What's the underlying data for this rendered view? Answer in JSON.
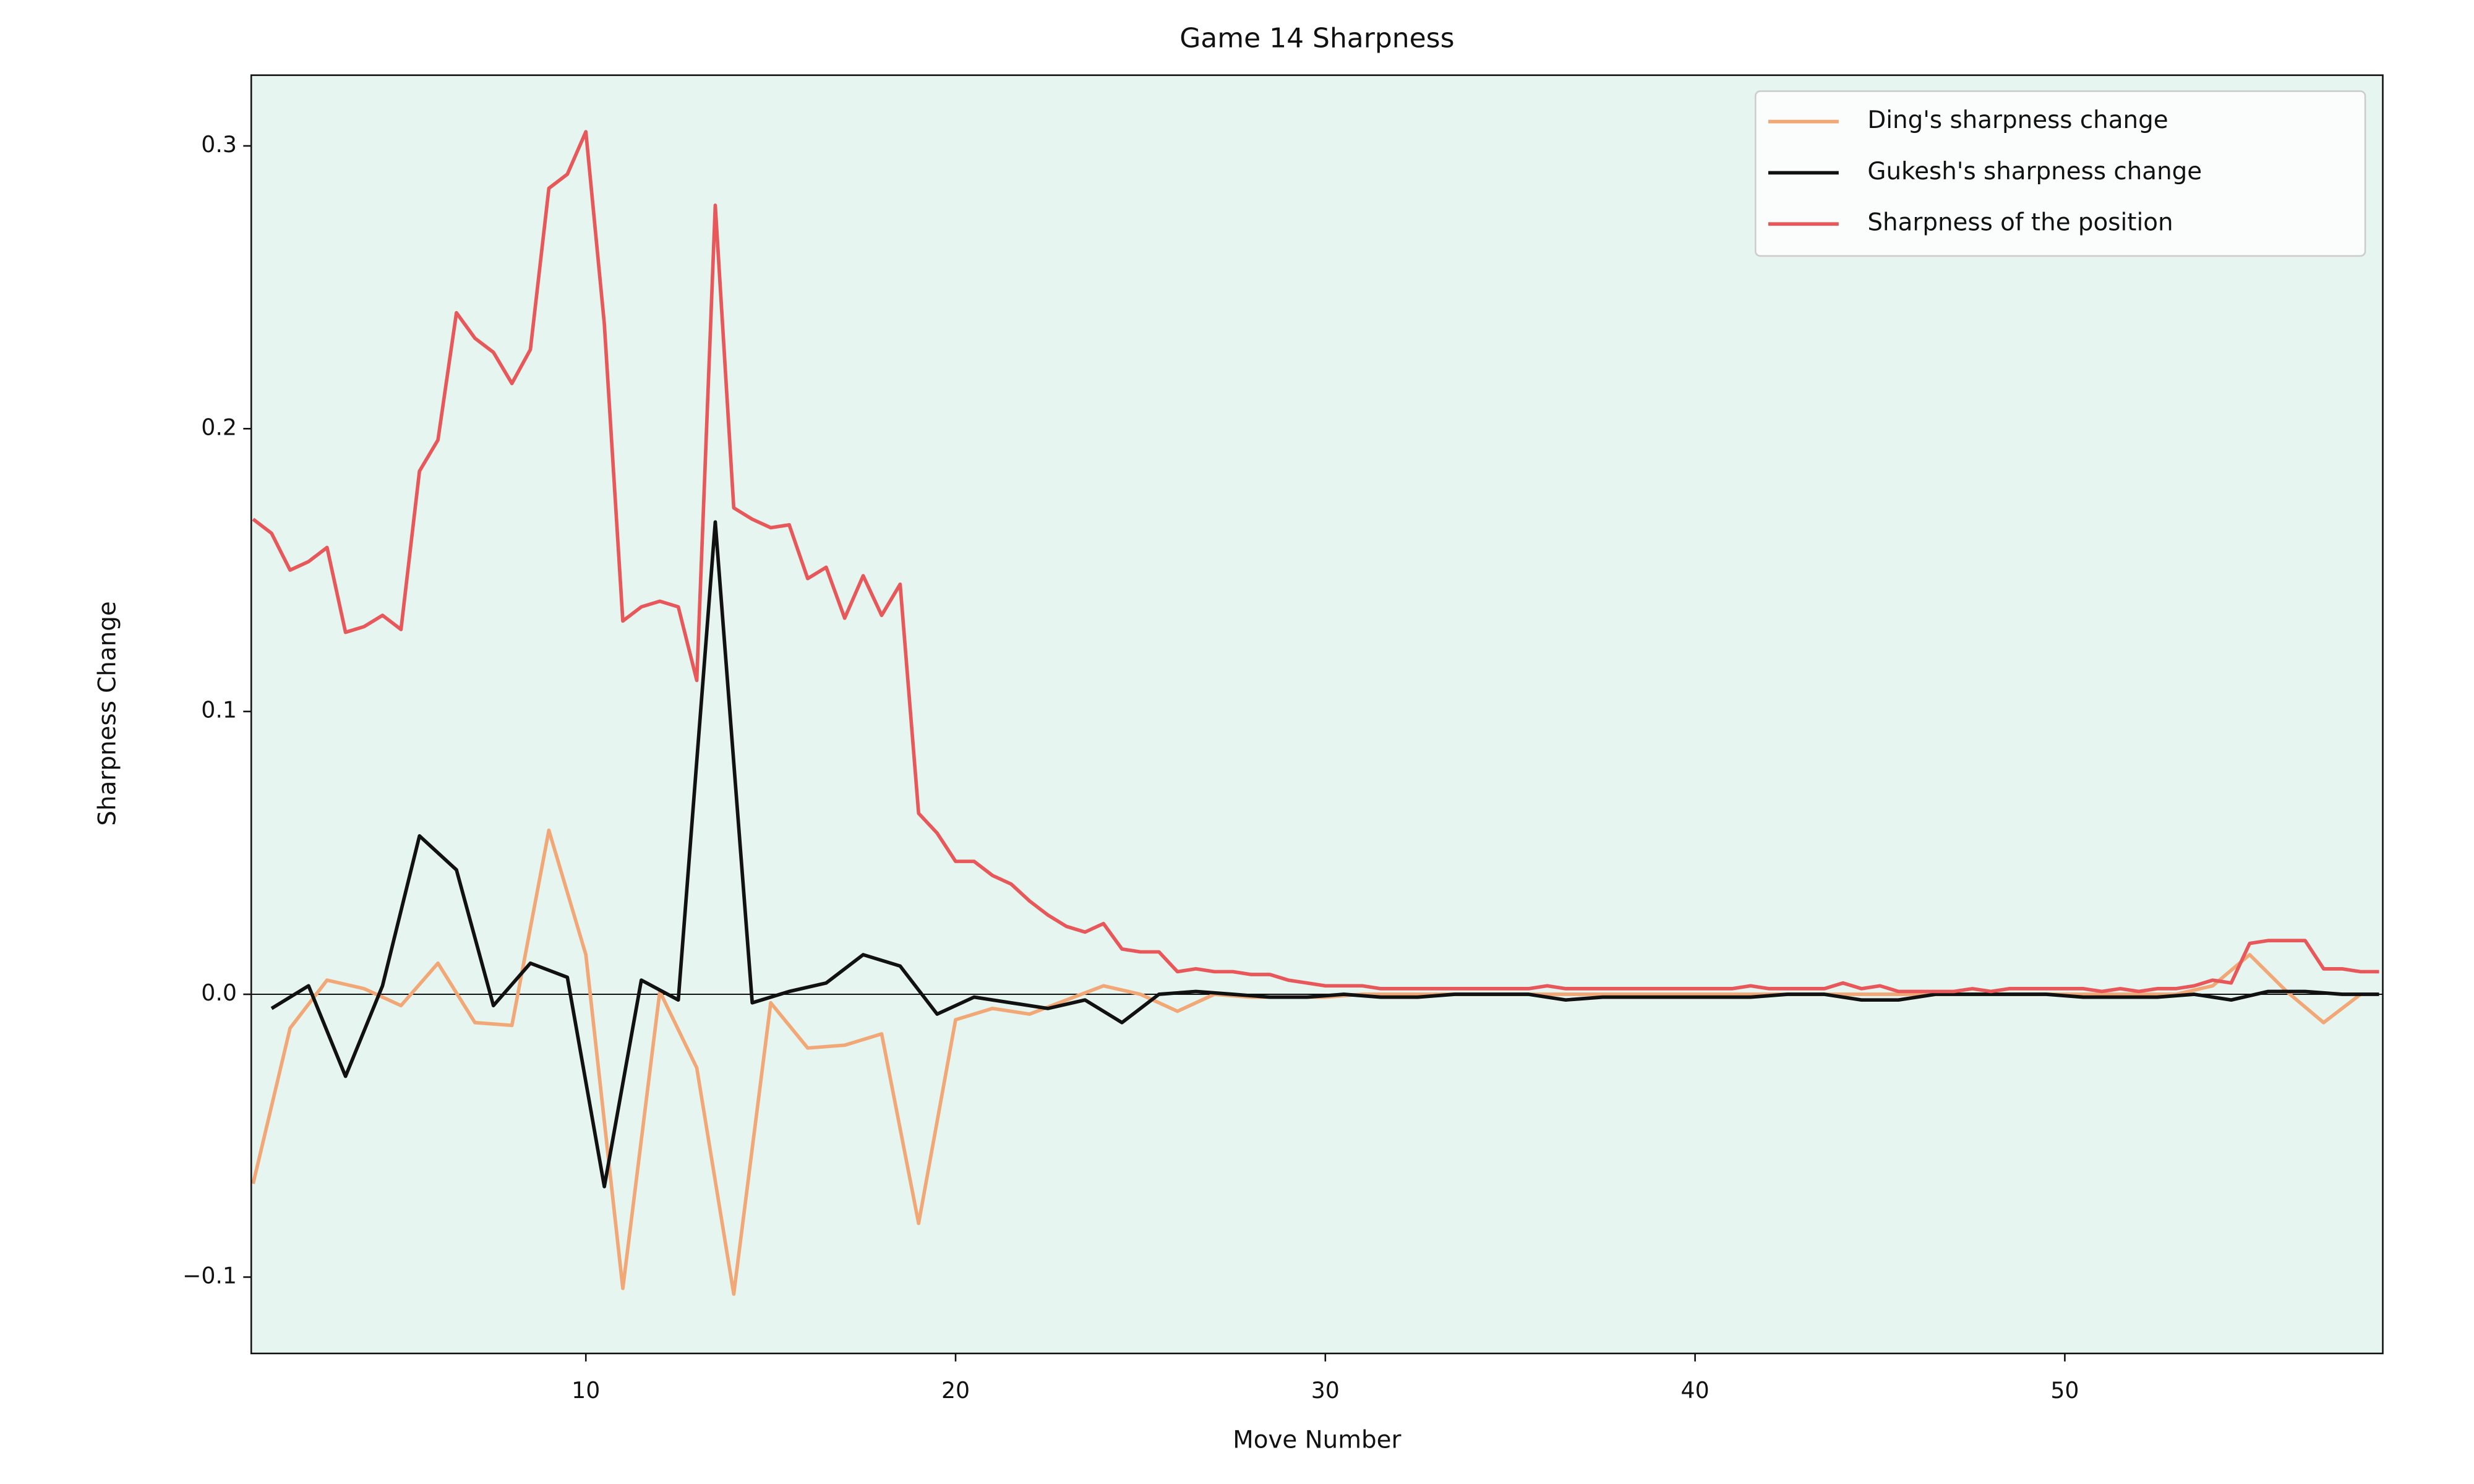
{
  "chart_data": {
    "type": "line",
    "title": "Game 14 Sharpness",
    "xlabel": "Move Number",
    "ylabel": "Sharpness Change",
    "xlim": [
      0.95,
      58.6
    ],
    "ylim": [
      -0.127,
      0.325
    ],
    "xticks": [
      10,
      20,
      30,
      40,
      50
    ],
    "yticks": [
      {
        "value": -0.1,
        "label": "−0.1"
      },
      {
        "value": 0,
        "label": "0.0"
      },
      0.1,
      0.2,
      0.3
    ],
    "hline": 0,
    "legend": "upper right",
    "background": "#e6f5ef",
    "series": [
      {
        "name": "Ding's sharpness change",
        "color": "#f2a777",
        "x": [
          1,
          2,
          3,
          4,
          5,
          6,
          7,
          8,
          9,
          10,
          11,
          12,
          13,
          14,
          15,
          16,
          17,
          18,
          19,
          20,
          21,
          22,
          23,
          24,
          25,
          26,
          27,
          28,
          29,
          30,
          31,
          32,
          33,
          34,
          35,
          36,
          37,
          38,
          39,
          40,
          41,
          42,
          43,
          44,
          45,
          46,
          47,
          48,
          49,
          50,
          51,
          52,
          53,
          54,
          55,
          56,
          57,
          58
        ],
        "values": [
          -0.067,
          -0.012,
          0.005,
          0.002,
          -0.004,
          0.011,
          -0.01,
          -0.011,
          0.058,
          0.014,
          -0.104,
          0.001,
          -0.026,
          -0.106,
          -0.003,
          -0.019,
          -0.018,
          -0.014,
          -0.081,
          -0.009,
          -0.005,
          -0.007,
          -0.002,
          0.003,
          0.0,
          -0.006,
          0.0,
          -0.001,
          -0.001,
          -0.001,
          0.0,
          0.0,
          0.0,
          0.0,
          0.0,
          0.0,
          0.0,
          0.0,
          0.0,
          0.0,
          0.0,
          0.0,
          0.0,
          0.0,
          0.0,
          0.0,
          0.0,
          0.0,
          0.0,
          0.0,
          0.0,
          0.0,
          0.0,
          0.003,
          0.014,
          0.001,
          -0.01,
          0.0
        ]
      },
      {
        "name": "Gukesh's sharpness change",
        "color": "#111111",
        "x": [
          1.5,
          2.5,
          3.5,
          4.5,
          5.5,
          6.5,
          7.5,
          8.5,
          9.5,
          10.5,
          11.5,
          12.5,
          13.5,
          14.5,
          15.5,
          16.5,
          17.5,
          18.5,
          19.5,
          20.5,
          21.5,
          22.5,
          23.5,
          24.5,
          25.5,
          26.5,
          27.5,
          28.5,
          29.5,
          30.5,
          31.5,
          32.5,
          33.5,
          34.5,
          35.5,
          36.5,
          37.5,
          38.5,
          39.5,
          40.5,
          41.5,
          42.5,
          43.5,
          44.5,
          45.5,
          46.5,
          47.5,
          48.5,
          49.5,
          50.5,
          51.5,
          52.5,
          53.5,
          54.5,
          55.5,
          56.5,
          57.5,
          58.5
        ],
        "values": [
          -0.005,
          0.003,
          -0.029,
          0.003,
          0.056,
          0.044,
          -0.004,
          0.011,
          0.006,
          -0.068,
          0.005,
          -0.002,
          0.167,
          -0.003,
          0.001,
          0.004,
          0.014,
          0.01,
          -0.007,
          -0.001,
          -0.003,
          -0.005,
          -0.002,
          -0.01,
          0.0,
          0.001,
          0.0,
          -0.001,
          -0.001,
          0.0,
          -0.001,
          -0.001,
          0.0,
          0.0,
          0.0,
          -0.002,
          -0.001,
          -0.001,
          -0.001,
          -0.001,
          -0.001,
          0.0,
          0.0,
          -0.002,
          -0.002,
          0.0,
          0.0,
          0.0,
          0.0,
          -0.001,
          -0.001,
          -0.001,
          0.0,
          -0.002,
          0.001,
          0.001,
          0.0,
          0.0
        ]
      },
      {
        "name": "Sharpness of the position",
        "color": "#e8585a",
        "x": [
          1,
          1.5,
          2,
          2.5,
          3,
          3.5,
          4,
          4.5,
          5,
          5.5,
          6,
          6.5,
          7,
          7.5,
          8,
          8.5,
          9,
          9.5,
          10,
          10.5,
          11,
          11.5,
          12,
          12.5,
          13,
          13.5,
          14,
          14.5,
          15,
          15.5,
          16,
          16.5,
          17,
          17.5,
          18,
          18.5,
          19,
          19.5,
          20,
          20.5,
          21,
          21.5,
          22,
          22.5,
          23,
          23.5,
          24,
          24.5,
          25,
          25.5,
          26,
          26.5,
          27,
          27.5,
          28,
          28.5,
          29,
          29.5,
          30,
          30.5,
          31,
          31.5,
          32,
          32.5,
          33,
          33.5,
          34,
          34.5,
          35,
          35.5,
          36,
          36.5,
          37,
          37.5,
          38,
          38.5,
          39,
          39.5,
          40,
          40.5,
          41,
          41.5,
          42,
          42.5,
          43,
          43.5,
          44,
          44.5,
          45,
          45.5,
          46,
          46.5,
          47,
          47.5,
          48,
          48.5,
          49,
          49.5,
          50,
          50.5,
          51,
          51.5,
          52,
          52.5,
          53,
          53.5,
          54,
          54.5,
          55,
          55.5,
          56,
          56.5,
          57,
          57.5,
          58,
          58.5
        ],
        "values": [
          0.168,
          0.163,
          0.15,
          0.153,
          0.158,
          0.128,
          0.13,
          0.134,
          0.129,
          0.185,
          0.196,
          0.241,
          0.232,
          0.227,
          0.216,
          0.228,
          0.285,
          0.29,
          0.305,
          0.237,
          0.132,
          0.137,
          0.139,
          0.137,
          0.111,
          0.279,
          0.172,
          0.168,
          0.165,
          0.166,
          0.147,
          0.151,
          0.133,
          0.148,
          0.134,
          0.145,
          0.064,
          0.057,
          0.047,
          0.047,
          0.042,
          0.039,
          0.033,
          0.028,
          0.024,
          0.022,
          0.025,
          0.016,
          0.015,
          0.015,
          0.008,
          0.009,
          0.008,
          0.008,
          0.007,
          0.007,
          0.005,
          0.004,
          0.003,
          0.003,
          0.003,
          0.002,
          0.002,
          0.002,
          0.002,
          0.002,
          0.002,
          0.002,
          0.002,
          0.002,
          0.003,
          0.002,
          0.002,
          0.002,
          0.002,
          0.002,
          0.002,
          0.002,
          0.002,
          0.002,
          0.002,
          0.003,
          0.002,
          0.002,
          0.002,
          0.002,
          0.004,
          0.002,
          0.003,
          0.001,
          0.001,
          0.001,
          0.001,
          0.002,
          0.001,
          0.002,
          0.002,
          0.002,
          0.002,
          0.002,
          0.001,
          0.002,
          0.001,
          0.002,
          0.002,
          0.003,
          0.005,
          0.004,
          0.018,
          0.019,
          0.019,
          0.019,
          0.009,
          0.009,
          0.008,
          0.008
        ]
      }
    ]
  }
}
